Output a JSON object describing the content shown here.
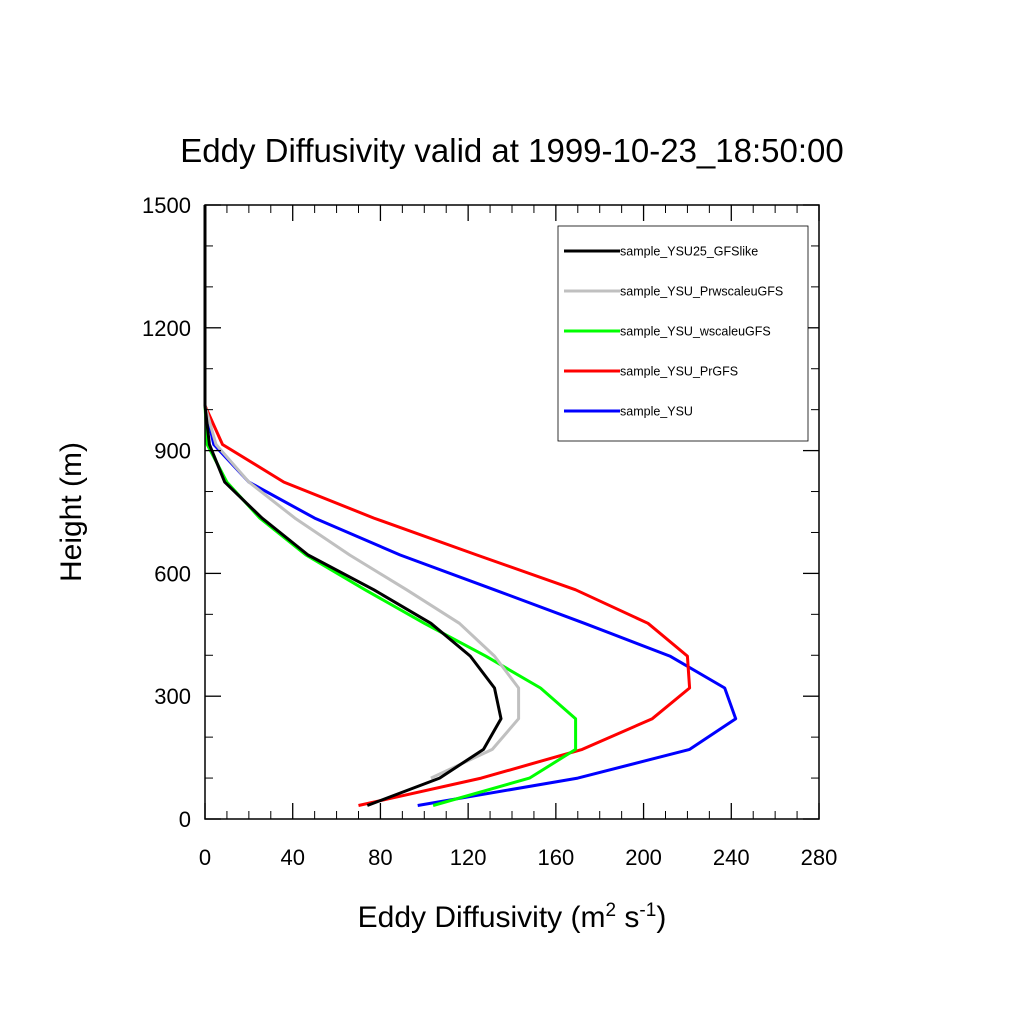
{
  "chart_data": {
    "type": "line",
    "title": "Eddy Diffusivity valid at 1999-10-23_18:50:00",
    "xlabel": {
      "base": "Eddy Diffusivity (m",
      "sup1": "2",
      "mid": " s",
      "sup2": "-1",
      "end": ")"
    },
    "ylabel": "Height (m)",
    "xlim": [
      0,
      280
    ],
    "ylim": [
      0,
      1500
    ],
    "x_ticks": [
      0,
      40,
      80,
      120,
      160,
      200,
      240,
      280
    ],
    "y_ticks": [
      0,
      300,
      600,
      900,
      1200,
      1500
    ],
    "x_minor_step": 10,
    "y_minor_step": 100,
    "legend_position": "top-right",
    "series": [
      {
        "name": "sample_YSU25_GFSlike",
        "color": "#000000",
        "points": [
          [
            74,
            33
          ],
          [
            107,
            100
          ],
          [
            127,
            170
          ],
          [
            135,
            245
          ],
          [
            132,
            320
          ],
          [
            121,
            398
          ],
          [
            103,
            478
          ],
          [
            77,
            560
          ],
          [
            47,
            645
          ],
          [
            26,
            735
          ],
          [
            9,
            823
          ],
          [
            2,
            915
          ],
          [
            0,
            1010
          ],
          [
            0,
            1100
          ],
          [
            0,
            1200
          ],
          [
            0,
            1300
          ],
          [
            0,
            1400
          ],
          [
            0,
            1500
          ]
        ]
      },
      {
        "name": "sample_YSU_PrwscaleuGFS",
        "color": "#c0c0c0",
        "points": [
          [
            103,
            100
          ],
          [
            131,
            170
          ],
          [
            143,
            245
          ],
          [
            143,
            320
          ],
          [
            132,
            398
          ],
          [
            116,
            478
          ],
          [
            92,
            560
          ],
          [
            66,
            645
          ],
          [
            41,
            735
          ],
          [
            20,
            823
          ],
          [
            5,
            915
          ],
          [
            0,
            1010
          ],
          [
            0,
            1100
          ],
          [
            0,
            1200
          ],
          [
            0,
            1300
          ],
          [
            0,
            1400
          ],
          [
            0,
            1500
          ]
        ]
      },
      {
        "name": "sample_YSU_wscaleuGFS",
        "color": "#00ff00",
        "points": [
          [
            104,
            33
          ],
          [
            148,
            100
          ],
          [
            169,
            170
          ],
          [
            169,
            245
          ],
          [
            153,
            320
          ],
          [
            128,
            398
          ],
          [
            100,
            478
          ],
          [
            73,
            560
          ],
          [
            46,
            645
          ],
          [
            25,
            735
          ],
          [
            10,
            823
          ],
          [
            1,
            915
          ],
          [
            0,
            1010
          ],
          [
            0,
            1100
          ],
          [
            0,
            1200
          ],
          [
            0,
            1300
          ],
          [
            0,
            1400
          ],
          [
            0,
            1500
          ]
        ]
      },
      {
        "name": "sample_YSU_PrGFS",
        "color": "#ff0000",
        "points": [
          [
            70,
            33
          ],
          [
            126,
            100
          ],
          [
            172,
            170
          ],
          [
            204,
            245
          ],
          [
            221,
            320
          ],
          [
            220,
            398
          ],
          [
            202,
            478
          ],
          [
            169,
            560
          ],
          [
            124,
            645
          ],
          [
            77,
            735
          ],
          [
            36,
            823
          ],
          [
            8,
            915
          ],
          [
            0,
            1010
          ],
          [
            0,
            1100
          ],
          [
            0,
            1200
          ],
          [
            0,
            1300
          ],
          [
            0,
            1400
          ],
          [
            0,
            1500
          ]
        ]
      },
      {
        "name": "sample_YSU",
        "color": "#0000ff",
        "points": [
          [
            97,
            33
          ],
          [
            170,
            100
          ],
          [
            221,
            170
          ],
          [
            242,
            245
          ],
          [
            237,
            320
          ],
          [
            212,
            398
          ],
          [
            173,
            478
          ],
          [
            132,
            560
          ],
          [
            89,
            645
          ],
          [
            50,
            735
          ],
          [
            20,
            823
          ],
          [
            4,
            915
          ],
          [
            0,
            1010
          ],
          [
            0,
            1100
          ],
          [
            0,
            1200
          ],
          [
            0,
            1300
          ],
          [
            0,
            1400
          ],
          [
            0,
            1500
          ]
        ]
      }
    ]
  }
}
